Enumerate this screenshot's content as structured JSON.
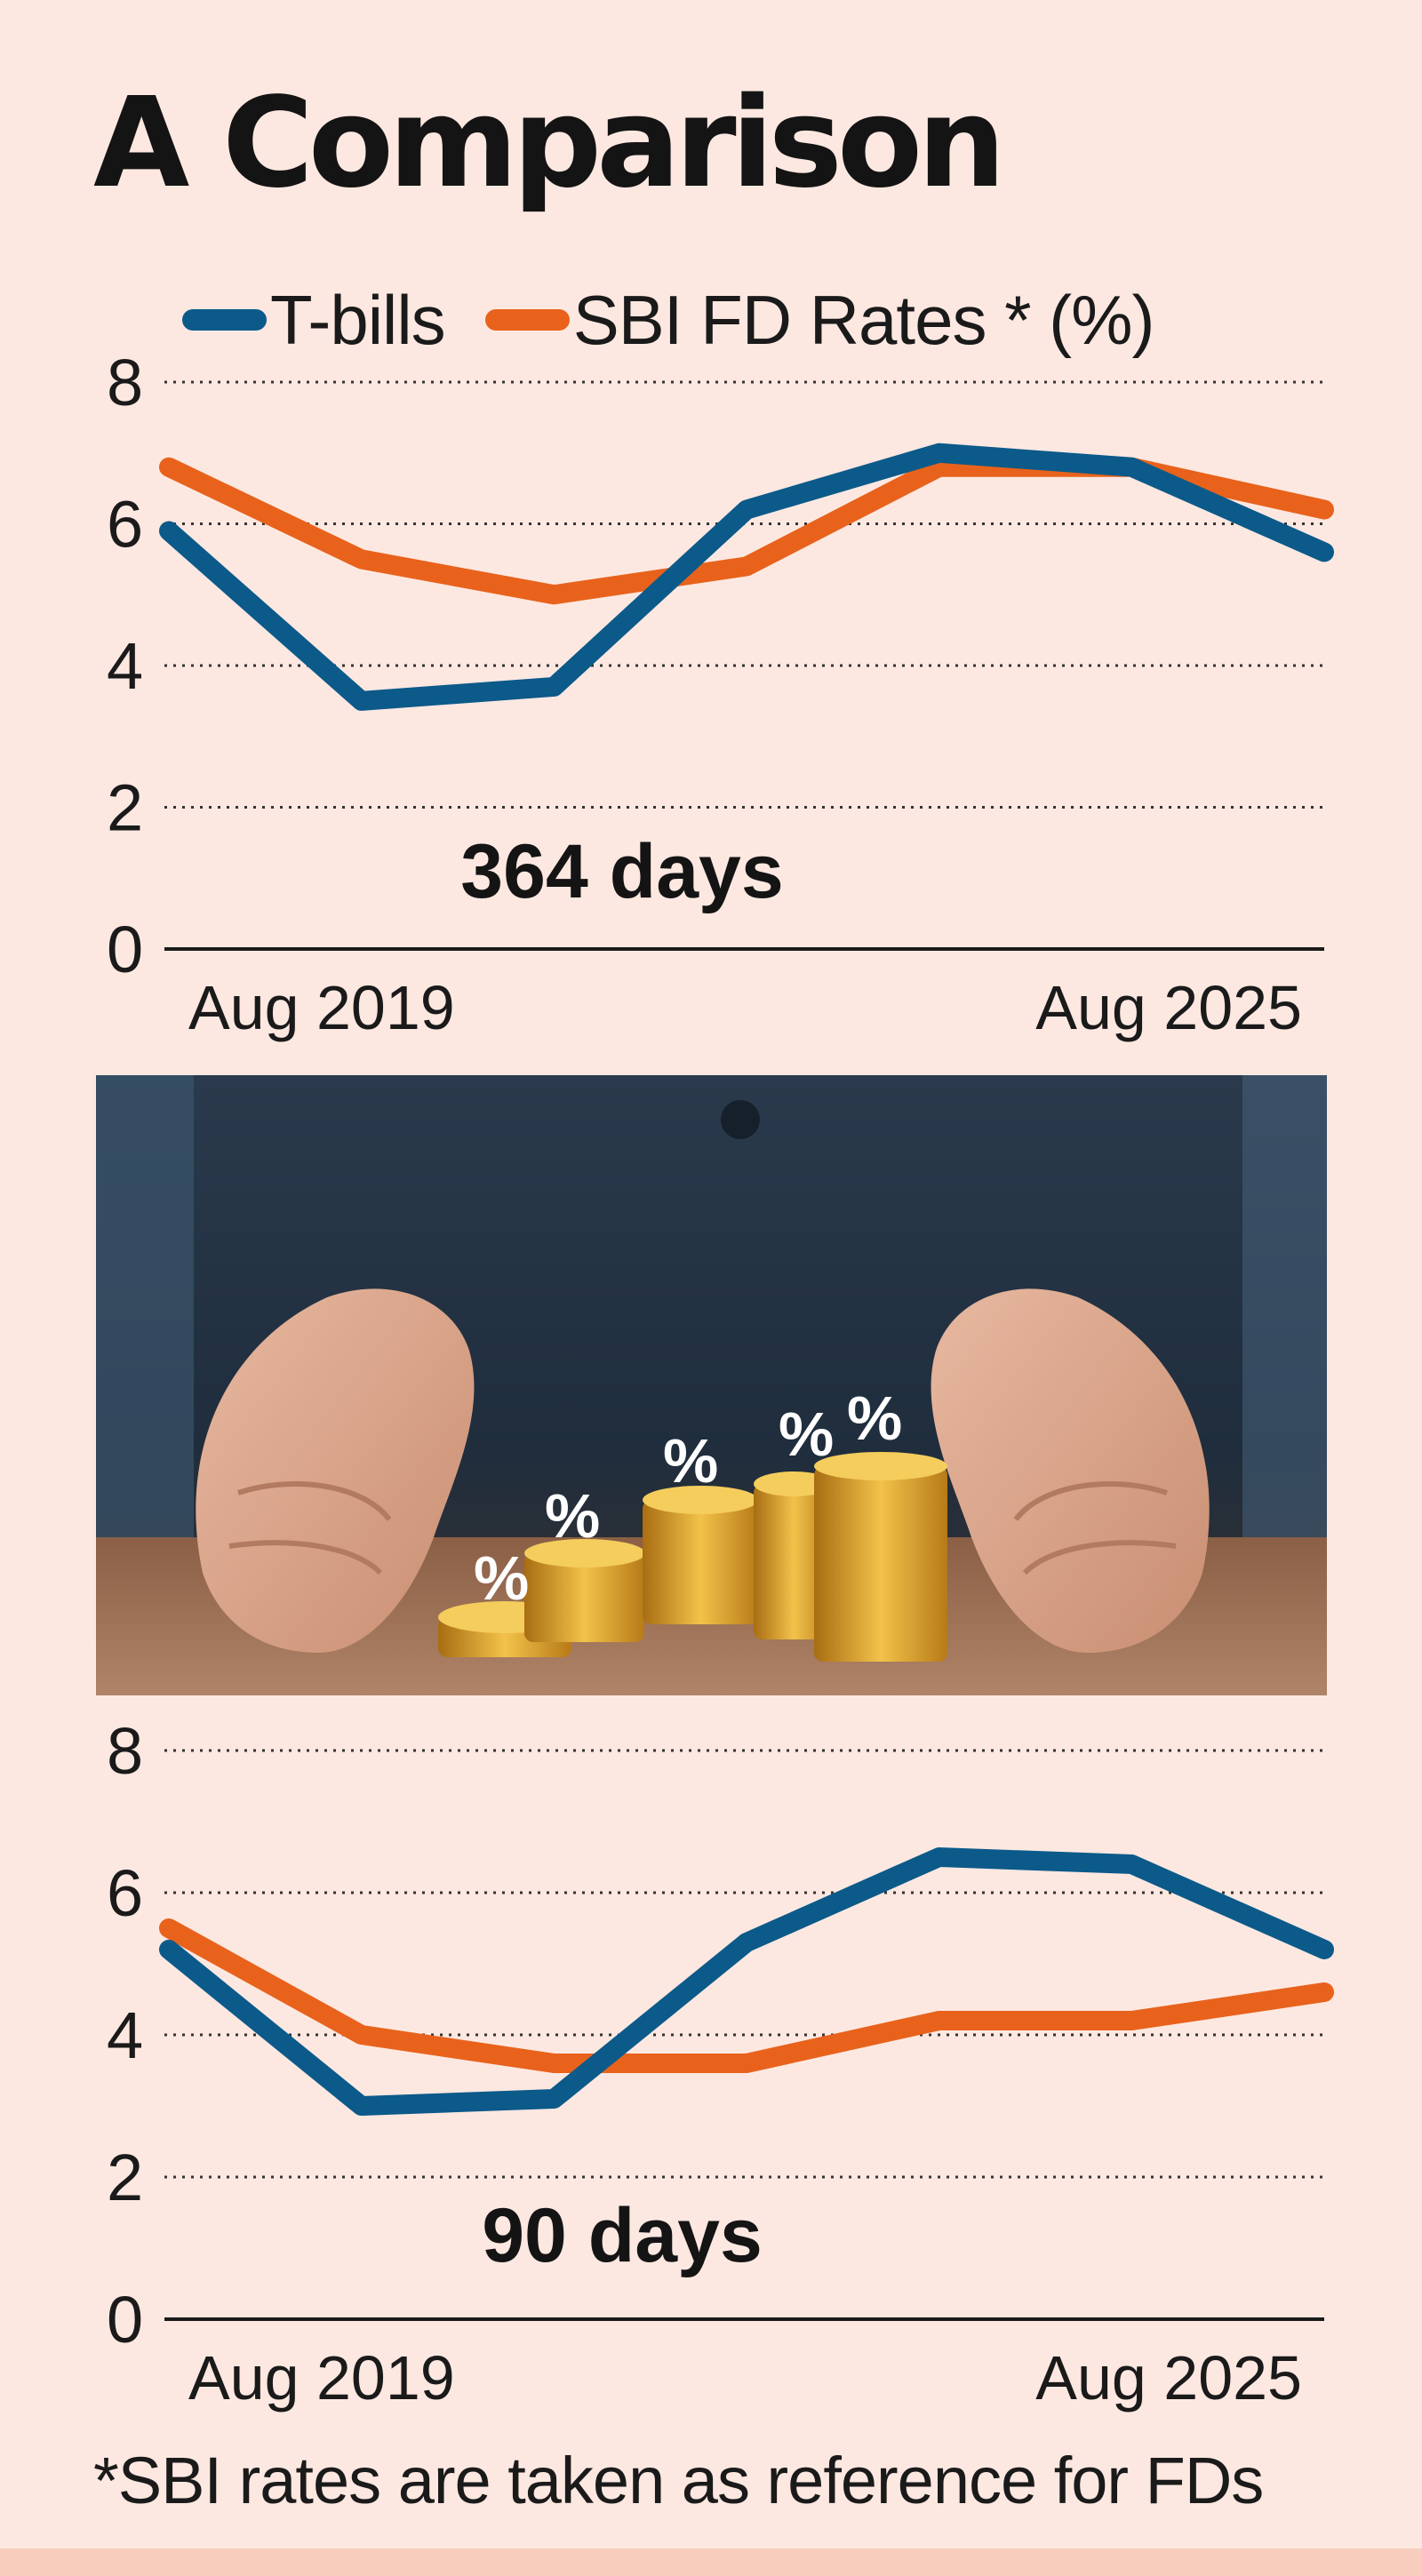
{
  "title": "A Comparison",
  "legend": {
    "items": [
      {
        "label": "T-bills",
        "color": "#0b5a8a"
      },
      {
        "label": "SBI FD Rates * (%)",
        "color": "#e8621c"
      }
    ]
  },
  "colors": {
    "background": "#fde8e1",
    "tbills": "#0b5a8a",
    "sbi": "#e8621c",
    "axis": "#1a1a1a"
  },
  "chart_data": [
    {
      "type": "line",
      "title": "364 days",
      "x_labels_shown": [
        "Aug 2019",
        "Aug 2025"
      ],
      "ylim": [
        0,
        8
      ],
      "yticks": [
        "0",
        "2",
        "4",
        "6",
        "8"
      ],
      "grid": true,
      "legend_position": "top",
      "x": [
        0,
        1,
        2,
        3,
        4,
        5,
        6
      ],
      "series": [
        {
          "name": "T-bills",
          "values": [
            5.9,
            3.5,
            3.7,
            6.2,
            7.0,
            6.8,
            5.6
          ]
        },
        {
          "name": "SBI FD Rates * (%)",
          "values": [
            6.8,
            5.5,
            5.0,
            5.4,
            6.8,
            6.8,
            6.2
          ]
        }
      ]
    },
    {
      "type": "line",
      "title": "90 days",
      "x_labels_shown": [
        "Aug 2019",
        "Aug 2025"
      ],
      "ylim": [
        0,
        8
      ],
      "yticks": [
        "0",
        "2",
        "4",
        "6",
        "8"
      ],
      "grid": true,
      "x": [
        0,
        1,
        2,
        3,
        4,
        5,
        6
      ],
      "series": [
        {
          "name": "T-bills",
          "values": [
            5.2,
            3.0,
            3.1,
            5.3,
            6.5,
            6.4,
            5.2
          ]
        },
        {
          "name": "SBI FD Rates * (%)",
          "values": [
            5.5,
            4.0,
            3.6,
            3.6,
            4.2,
            4.2,
            4.6
          ]
        }
      ]
    }
  ],
  "photo": {
    "description_icon": "hands-protecting-coins-icon",
    "coin_symbols": [
      "%",
      "%",
      "%",
      "%",
      "%"
    ]
  },
  "footnote": "*SBI rates are taken as reference for FDs"
}
